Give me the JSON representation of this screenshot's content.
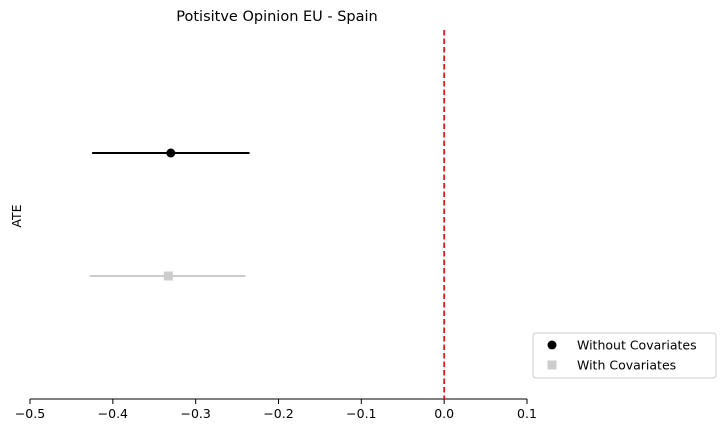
{
  "chart_data": {
    "type": "scatter",
    "title": "Potisitve Opinion EU - Spain",
    "xlabel": "",
    "ylabel": "ATE",
    "xlim": [
      -0.5,
      0.1
    ],
    "xticks": [
      -0.5,
      -0.4,
      -0.3,
      -0.2,
      -0.1,
      0.0,
      0.1
    ],
    "xtick_labels": [
      "−0.5",
      "−0.4",
      "−0.3",
      "−0.2",
      "−0.1",
      "0.0",
      "0.1"
    ],
    "grid": false,
    "legend_position": "lower-right outside",
    "reference_line": {
      "x": 0.0,
      "style": "dashed",
      "color": "#e41a1c"
    },
    "series": [
      {
        "name": "Without Covariates",
        "estimate": -0.33,
        "ci": [
          -0.425,
          -0.235
        ],
        "marker": "circle",
        "color": "#000000"
      },
      {
        "name": "With Covariates",
        "estimate": -0.333,
        "ci": [
          -0.428,
          -0.24
        ],
        "marker": "square",
        "color": "#cccccc"
      }
    ]
  }
}
